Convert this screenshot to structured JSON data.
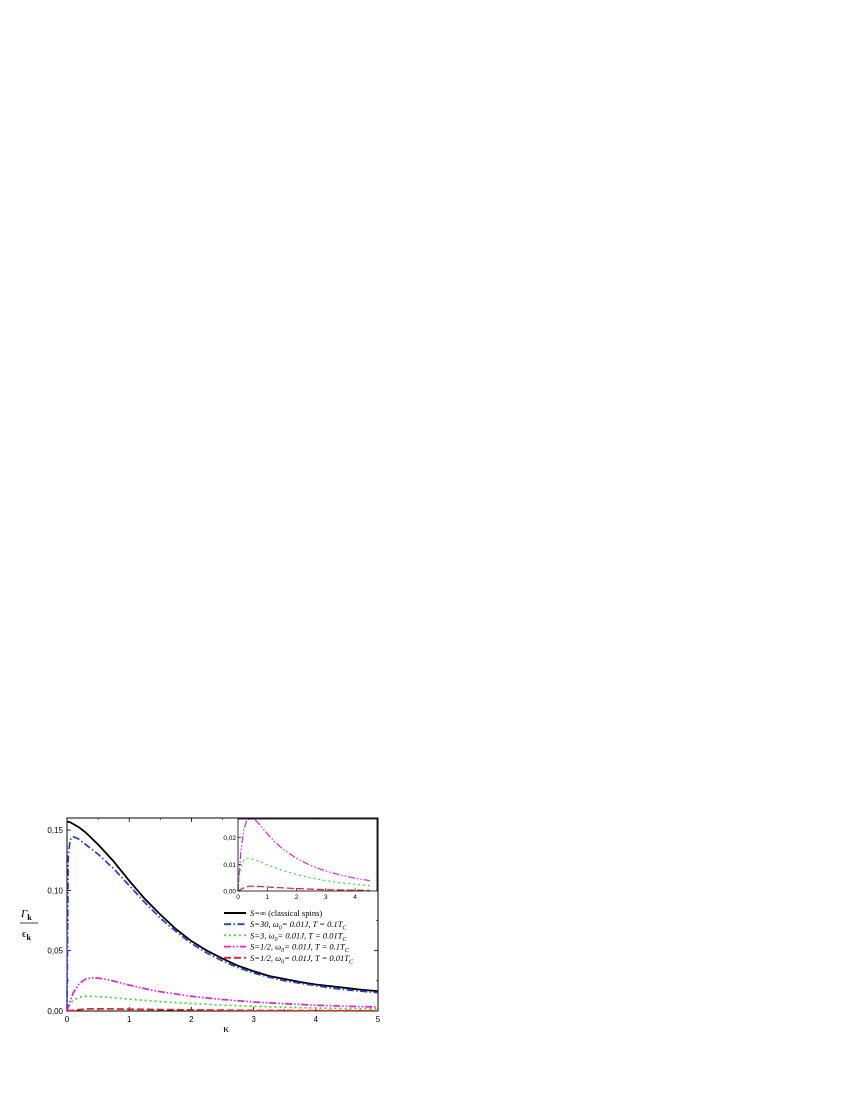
{
  "chart_data": [
    {
      "type": "line",
      "xlabel": "κ",
      "ylabel_numerator": "Γ",
      "ylabel_numerator_sub": "k",
      "ylabel_denominator": "ϵ",
      "ylabel_denominator_sub": "k",
      "xlim": [
        0,
        5
      ],
      "ylim": [
        0,
        0.16
      ],
      "xticks": [
        0,
        1,
        2,
        3,
        4,
        5
      ],
      "xtick_labels": [
        "0",
        "1",
        "2",
        "3",
        "4",
        "5"
      ],
      "yticks": [
        0,
        0.05,
        0.1,
        0.15
      ],
      "ytick_labels": [
        "0,00",
        "0,05",
        "0,10",
        "0,15"
      ],
      "grid": false,
      "legend_position": "right-middle",
      "series": [
        {
          "name": "S=∞ (classical spins)",
          "color": "#000000",
          "style": "solid",
          "x": [
            0,
            0.05,
            0.1,
            0.2,
            0.3,
            0.4,
            0.5,
            0.75,
            1.0,
            1.25,
            1.5,
            1.75,
            2.0,
            2.25,
            2.5,
            2.75,
            3.0,
            3.25,
            3.5,
            3.75,
            4.0,
            4.25,
            4.5,
            4.75,
            5.0
          ],
          "y": [
            0.157,
            0.1565,
            0.155,
            0.152,
            0.148,
            0.143,
            0.138,
            0.124,
            0.108,
            0.093,
            0.08,
            0.068,
            0.058,
            0.05,
            0.0435,
            0.0375,
            0.033,
            0.029,
            0.0265,
            0.024,
            0.022,
            0.0205,
            0.019,
            0.0175,
            0.0165
          ]
        },
        {
          "name": "S=30,  ω0= 0.01J, T = 0.1TC",
          "color": "#1f3fd8",
          "style": "dashdot",
          "x": [
            0,
            0.02,
            0.05,
            0.1,
            0.15,
            0.2,
            0.3,
            0.4,
            0.5,
            0.75,
            1.0,
            1.25,
            1.5,
            1.75,
            2.0,
            2.25,
            2.5,
            2.75,
            3.0,
            3.25,
            3.5,
            3.75,
            4.0,
            4.25,
            4.5,
            4.75,
            5.0
          ],
          "y": [
            0.0,
            0.128,
            0.142,
            0.1445,
            0.1435,
            0.142,
            0.138,
            0.134,
            0.13,
            0.118,
            0.104,
            0.09,
            0.077,
            0.066,
            0.056,
            0.048,
            0.0415,
            0.036,
            0.0315,
            0.028,
            0.025,
            0.023,
            0.021,
            0.019,
            0.0175,
            0.0163,
            0.0152
          ]
        },
        {
          "name": "S=3,   ω0= 0.01J, T = 0.01TC",
          "color": "#33dd33",
          "style": "dotted",
          "x": [
            0,
            0.05,
            0.1,
            0.2,
            0.3,
            0.4,
            0.5,
            0.75,
            1.0,
            1.5,
            2.0,
            2.5,
            3.0,
            3.5,
            4.0,
            4.5,
            5.0
          ],
          "y": [
            0.0,
            0.006,
            0.009,
            0.0115,
            0.0123,
            0.0122,
            0.0119,
            0.011,
            0.0098,
            0.0078,
            0.0062,
            0.0049,
            0.0039,
            0.0031,
            0.0025,
            0.002,
            0.0017
          ]
        },
        {
          "name": "S=1/2, ω0= 0.01J, T = 0.1TC",
          "color": "#e020e0",
          "style": "dashdotdot",
          "x": [
            0,
            0.05,
            0.1,
            0.2,
            0.3,
            0.4,
            0.5,
            0.6,
            0.75,
            1.0,
            1.25,
            1.5,
            2.0,
            2.5,
            3.0,
            3.5,
            4.0,
            4.5,
            5.0
          ],
          "y": [
            0.0,
            0.008,
            0.015,
            0.023,
            0.0265,
            0.0275,
            0.0273,
            0.0265,
            0.0248,
            0.0215,
            0.0185,
            0.016,
            0.0122,
            0.0095,
            0.0075,
            0.006,
            0.0048,
            0.0039,
            0.0033
          ]
        },
        {
          "name": "S=1/2, ω0= 0.01J, T = 0.01TC",
          "color": "#e02020",
          "style": "dashed",
          "x": [
            0,
            0.1,
            0.2,
            0.3,
            0.4,
            0.5,
            0.75,
            1.0,
            1.5,
            2.0,
            2.5,
            3.0,
            3.5,
            4.0,
            4.5,
            5.0
          ],
          "y": [
            0.0,
            0.0006,
            0.0012,
            0.0016,
            0.0018,
            0.0018,
            0.0017,
            0.0015,
            0.0012,
            0.0009,
            0.0007,
            0.0005,
            0.0004,
            0.0003,
            0.00025,
            0.0002
          ]
        }
      ]
    },
    {
      "type": "line",
      "role": "inset",
      "xlim": [
        0,
        4.75
      ],
      "ylim": [
        0,
        0.027
      ],
      "xticks": [
        0,
        1,
        2,
        3,
        4
      ],
      "xtick_labels": [
        "0",
        "1",
        "2",
        "3",
        "4"
      ],
      "yticks": [
        0,
        0.01,
        0.02
      ],
      "ytick_labels": [
        "0,00",
        "0,01",
        "0,02"
      ],
      "grid": false,
      "series_refs": [
        3,
        2,
        4
      ]
    }
  ],
  "legend": {
    "entries": [
      {
        "pre": "S=∞",
        "post": " (classical spins)"
      },
      {
        "pre": "S=30,  ω",
        "sub0": "0",
        "mid": "= 0.01J, T = 0.1T",
        "sub1": "C"
      },
      {
        "pre": "S=3,   ω",
        "sub0": "0",
        "mid": "= 0.01J, T = 0.01T",
        "sub1": "C"
      },
      {
        "pre": "S=1/2, ω",
        "sub0": "0",
        "mid": "= 0.01J, T = 0.1T",
        "sub1": "C"
      },
      {
        "pre": "S=1/2, ω",
        "sub0": "0",
        "mid": "= 0.01J, T = 0.01T",
        "sub1": "C"
      }
    ]
  }
}
